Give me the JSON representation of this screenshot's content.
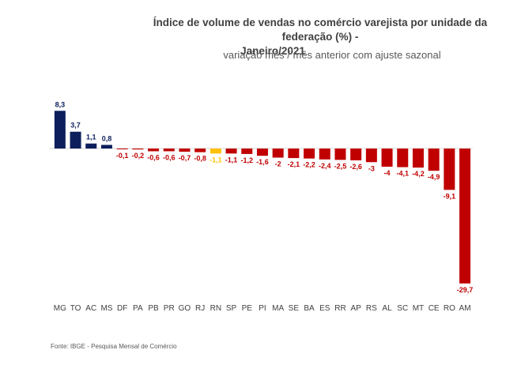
{
  "title_line1": "Índice de volume de vendas no comércio varejista por unidade da federação (%) -",
  "title_line2": "Janeiro/2021",
  "subtitle": "variação mês / mês anterior com ajuste sazonal",
  "source": "Fonte: IBGE - Pesquisa Mensal de Comércio",
  "colors": {
    "positive": "#0c1f5c",
    "negative": "#c00000",
    "highlight": "#ffc000"
  },
  "chart_data": {
    "type": "bar",
    "title": "Índice de volume de vendas no comércio varejista por unidade da federação (%) - Janeiro/2021",
    "subtitle": "variação mês / mês anterior com ajuste sazonal",
    "categories": [
      "MG",
      "TO",
      "AC",
      "MS",
      "DF",
      "PA",
      "PB",
      "PR",
      "GO",
      "RJ",
      "RN",
      "SP",
      "PE",
      "PI",
      "MA",
      "SE",
      "BA",
      "ES",
      "RR",
      "AP",
      "RS",
      "AL",
      "SC",
      "MT",
      "CE",
      "RO",
      "AM"
    ],
    "values": [
      8.3,
      3.7,
      1.1,
      0.8,
      -0.1,
      -0.2,
      -0.6,
      -0.6,
      -0.7,
      -0.8,
      -1.1,
      -1.1,
      -1.2,
      -1.6,
      -2,
      -2.1,
      -2.2,
      -2.4,
      -2.5,
      -2.6,
      -3,
      -4,
      -4.1,
      -4.2,
      -4.9,
      -9.1,
      -29.7
    ],
    "labels": [
      "8,3",
      "3,7",
      "1,1",
      "0,8",
      "-0,1",
      "-0,2",
      "-0,6",
      "-0,6",
      "-0,7",
      "-0,8",
      "-1,1",
      "-1,1",
      "-1,2",
      "-1,6",
      "-2",
      "-2,1",
      "-2,2",
      "-2,4",
      "-2,5",
      "-2,6",
      "-3",
      "-4",
      "-4,1",
      "-4,2",
      "-4,9",
      "-9,1",
      "-29,7"
    ],
    "highlight_category": "RN",
    "ylim": [
      -29.7,
      8.3
    ],
    "grid": false,
    "legend": "none"
  }
}
